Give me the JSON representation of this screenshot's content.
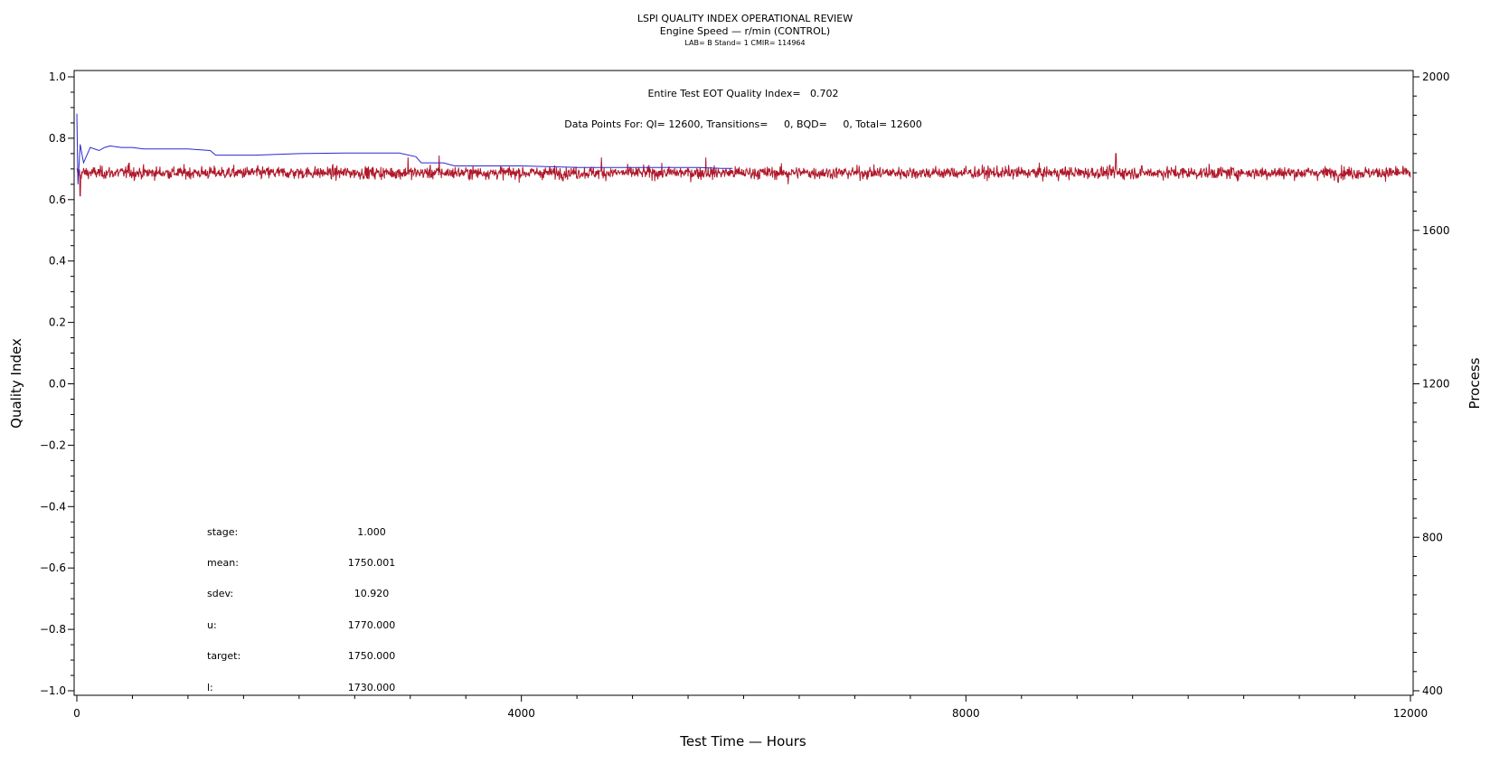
{
  "header": {
    "title": "LSPI QUALITY INDEX OPERATIONAL REVIEW",
    "subtitle": "Engine Speed — r/min (CONTROL)",
    "subtitle2": "LAB= B Stand= 1 CMIR= 114964"
  },
  "annotations": {
    "eot_index": "Entire Test EOT Quality Index=   0.702",
    "data_points": "Data Points For: QI= 12600, Transitions=     0, BQD=     0, Total= 12600"
  },
  "stats": [
    {
      "label": "stage:",
      "value": "1.000"
    },
    {
      "label": "mean:",
      "value": "1750.001"
    },
    {
      "label": "sdev:",
      "value": "10.920"
    },
    {
      "label": "u:",
      "value": "1770.000"
    },
    {
      "label": "target:",
      "value": "1750.000"
    },
    {
      "label": "l:",
      "value": "1730.000"
    }
  ],
  "chart_data": {
    "type": "line",
    "xlabel": "Test Time — Hours",
    "ylabel_left": "Quality Index",
    "ylabel_right": "Process",
    "xlim": [
      0,
      12000
    ],
    "ylim_left": [
      -1.0,
      1.0
    ],
    "ylim_right": [
      400,
      2000
    ],
    "x_ticks": [
      "0",
      "4000",
      "8000",
      "12000"
    ],
    "y_left_ticks": [
      "1.0",
      "0.8",
      "0.6",
      "0.4",
      "0.2",
      "0.0",
      "−0.2",
      "−0.4",
      "−0.6",
      "−0.8",
      "−1.0"
    ],
    "y_right_ticks": [
      "2000",
      "1600",
      "1200",
      "800",
      "400"
    ],
    "series": [
      {
        "axis": "left",
        "color": "#2a2ad0",
        "points": [
          [
            0,
            0.88
          ],
          [
            10,
            0.65
          ],
          [
            30,
            0.78
          ],
          [
            60,
            0.72
          ],
          [
            120,
            0.77
          ],
          [
            200,
            0.76
          ],
          [
            250,
            0.77
          ],
          [
            300,
            0.775
          ],
          [
            400,
            0.77
          ],
          [
            500,
            0.77
          ],
          [
            600,
            0.765
          ],
          [
            800,
            0.765
          ],
          [
            1000,
            0.765
          ],
          [
            1200,
            0.76
          ],
          [
            1250,
            0.745
          ],
          [
            1300,
            0.745
          ],
          [
            1600,
            0.745
          ],
          [
            2000,
            0.75
          ],
          [
            2400,
            0.752
          ],
          [
            2700,
            0.752
          ],
          [
            2900,
            0.752
          ],
          [
            3050,
            0.74
          ],
          [
            3100,
            0.72
          ],
          [
            3300,
            0.72
          ],
          [
            3400,
            0.71
          ],
          [
            3500,
            0.71
          ],
          [
            4000,
            0.71
          ],
          [
            4500,
            0.705
          ],
          [
            5000,
            0.705
          ],
          [
            5600,
            0.705
          ],
          [
            5700,
            0.703
          ],
          [
            5800,
            0.702
          ],
          [
            5900,
            0.702
          ]
        ]
      },
      {
        "axis": "right",
        "color": "#b0182a",
        "process_center": 1750,
        "process_sdev": 10.92,
        "n_points": 12600,
        "excursions": [
          {
            "x": 30,
            "value": 1690
          },
          {
            "x": 470,
            "value": 1775
          },
          {
            "x": 2980,
            "value": 1790
          },
          {
            "x": 3260,
            "value": 1795
          },
          {
            "x": 4720,
            "value": 1790
          },
          {
            "x": 5660,
            "value": 1790
          },
          {
            "x": 6400,
            "value": 1720
          },
          {
            "x": 9350,
            "value": 1800
          },
          {
            "x": 11350,
            "value": 1725
          }
        ]
      }
    ]
  }
}
